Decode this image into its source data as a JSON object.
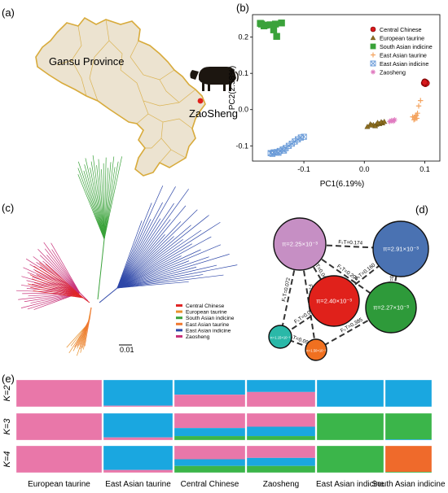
{
  "panel_labels": [
    "(a)",
    "(b)",
    "(c)",
    "(d)",
    "(e)"
  ],
  "map": {
    "region_label": "Gansu Province",
    "site_label": "ZaoSheng",
    "colors": {
      "land": "#ece3d0",
      "border": "#d8ab3c",
      "site": "#e0211b"
    }
  },
  "populations": [
    {
      "name": "Central Chinese",
      "color": "#d7191c"
    },
    {
      "name": "European taurine",
      "color": "#8c6d1f"
    },
    {
      "name": "South Asian indicine",
      "color": "#3aa23a"
    },
    {
      "name": "East Asian taurine",
      "color": "#f4a460"
    },
    {
      "name": "East Asian indicine",
      "color": "#6a9bd8"
    },
    {
      "name": "Zaosheng",
      "color": "#e07bc0"
    }
  ],
  "tree": {
    "scale_label": "0.01",
    "colors": {
      "Central Chinese": "#e02626",
      "European taurine": "#e8902c",
      "South Asian indicine": "#3aa23a",
      "East Asian taurine": "#f07830",
      "East Asian indicine": "#2e47a8",
      "Zaosheng": "#c8327a"
    }
  },
  "network": {
    "nodes": [
      {
        "id": "zao",
        "label": "π=2.25×10⁻³",
        "color": "#c68fc4"
      },
      {
        "id": "eai",
        "label": "π=2.91×10⁻³",
        "color": "#4a72b2"
      },
      {
        "id": "cc",
        "label": "π=2.40×10⁻³",
        "color": "#e0211b"
      },
      {
        "id": "sai",
        "label": "π=2.27×10⁻³",
        "color": "#2e9a3a"
      },
      {
        "id": "eut",
        "label": "π=1.15×10⁻³",
        "color": "#2ab8a8"
      },
      {
        "id": "eat",
        "label": "π=1.50×10⁻³",
        "color": "#f07020"
      }
    ],
    "edges": [
      {
        "from": "zao",
        "to": "eai",
        "label": "FₛT=0.174"
      },
      {
        "from": "zao",
        "to": "cc",
        "label": "FₛT=0.040"
      },
      {
        "from": "zao",
        "to": "sai",
        "label": "FₛT=0.205"
      },
      {
        "from": "zao",
        "to": "eut",
        "label": "FₛT=0.072"
      },
      {
        "from": "zao",
        "to": "eat",
        "label": "FₛT=0.012"
      },
      {
        "from": "cc",
        "to": "eai",
        "label": "FₛT=0.160"
      },
      {
        "from": "sai",
        "to": "eai",
        "label": "FₛT=0.092"
      },
      {
        "from": "cc",
        "to": "eut",
        "label": "FₛT=0.075"
      },
      {
        "from": "eut",
        "to": "eat",
        "label": "FₛT=0.097"
      },
      {
        "from": "eat",
        "to": "sai",
        "label": "FₛT=0.385"
      }
    ]
  },
  "admixture": {
    "rows": [
      "K=2",
      "K=3",
      "K=4"
    ],
    "groups": [
      "European taurine",
      "East Asian taurine",
      "Central Chinese",
      "Zaosheng",
      "East Asian indicine",
      "South Asian indicine"
    ],
    "colors": {
      "pink": "#e977a9",
      "blue": "#1aa7e0",
      "green": "#3bb54a",
      "orange": "#ef6a2b"
    }
  },
  "chart_data": {
    "type": "scatter",
    "title": "",
    "xlabel": "PC1(6.19%)",
    "ylabel": "PC2(2.58%)",
    "xticks": [
      -0.1,
      0.0,
      0.1
    ],
    "yticks": [
      -0.1,
      0.0,
      0.1,
      0.2
    ],
    "xlim": [
      -0.185,
      0.125
    ],
    "ylim": [
      -0.142,
      0.262
    ],
    "legend_position": "top-right",
    "series": [
      {
        "name": "Central Chinese",
        "color": "#d7191c",
        "marker": "circle",
        "points": [
          [
            0.1,
            0.077
          ],
          [
            0.102,
            0.075
          ],
          [
            0.099,
            0.073
          ],
          [
            0.101,
            0.071
          ],
          [
            0.103,
            0.073
          ],
          [
            0.1,
            0.075
          ]
        ]
      },
      {
        "name": "European taurine",
        "color": "#8c6d1f",
        "marker": "triangle",
        "points": [
          [
            0.01,
            -0.04
          ],
          [
            0.015,
            -0.042
          ],
          [
            0.02,
            -0.041
          ],
          [
            0.025,
            -0.039
          ],
          [
            0.03,
            -0.037
          ],
          [
            0.018,
            -0.045
          ],
          [
            0.012,
            -0.043
          ],
          [
            0.028,
            -0.034
          ],
          [
            0.005,
            -0.047
          ],
          [
            0.022,
            -0.036
          ],
          [
            0.033,
            -0.033
          ]
        ]
      },
      {
        "name": "South Asian indicine",
        "color": "#3aa23a",
        "marker": "square",
        "points": [
          [
            -0.172,
            0.238
          ],
          [
            -0.163,
            0.233
          ],
          [
            -0.156,
            0.234
          ],
          [
            -0.147,
            0.236
          ],
          [
            -0.137,
            0.239
          ],
          [
            -0.166,
            0.231
          ],
          [
            -0.15,
            0.22
          ],
          [
            -0.145,
            0.202
          ],
          [
            -0.17,
            0.236
          ]
        ]
      },
      {
        "name": "East Asian taurine",
        "color": "#f4a460",
        "marker": "plus",
        "points": [
          [
            0.08,
            -0.02
          ],
          [
            0.083,
            -0.022
          ],
          [
            0.085,
            -0.018
          ],
          [
            0.087,
            -0.024
          ],
          [
            0.082,
            -0.028
          ],
          [
            0.086,
            -0.015
          ],
          [
            0.09,
            0.01
          ],
          [
            0.093,
            0.025
          ],
          [
            0.088,
            -0.01
          ],
          [
            0.084,
            -0.026
          ]
        ]
      },
      {
        "name": "East Asian indicine",
        "color": "#6a9bd8",
        "marker": "cross-square",
        "points": [
          [
            -0.155,
            -0.12
          ],
          [
            -0.15,
            -0.118
          ],
          [
            -0.145,
            -0.117
          ],
          [
            -0.14,
            -0.114
          ],
          [
            -0.135,
            -0.11
          ],
          [
            -0.13,
            -0.106
          ],
          [
            -0.125,
            -0.1
          ],
          [
            -0.12,
            -0.094
          ],
          [
            -0.115,
            -0.088
          ],
          [
            -0.11,
            -0.082
          ],
          [
            -0.105,
            -0.077
          ],
          [
            -0.1,
            -0.075
          ],
          [
            -0.152,
            -0.122
          ],
          [
            -0.142,
            -0.119
          ],
          [
            -0.133,
            -0.113
          ]
        ]
      },
      {
        "name": "Zaosheng",
        "color": "#e07bc0",
        "marker": "asterisk",
        "points": [
          [
            0.045,
            -0.03
          ],
          [
            0.048,
            -0.032
          ],
          [
            0.05,
            -0.028
          ],
          [
            0.042,
            -0.033
          ]
        ]
      }
    ]
  }
}
